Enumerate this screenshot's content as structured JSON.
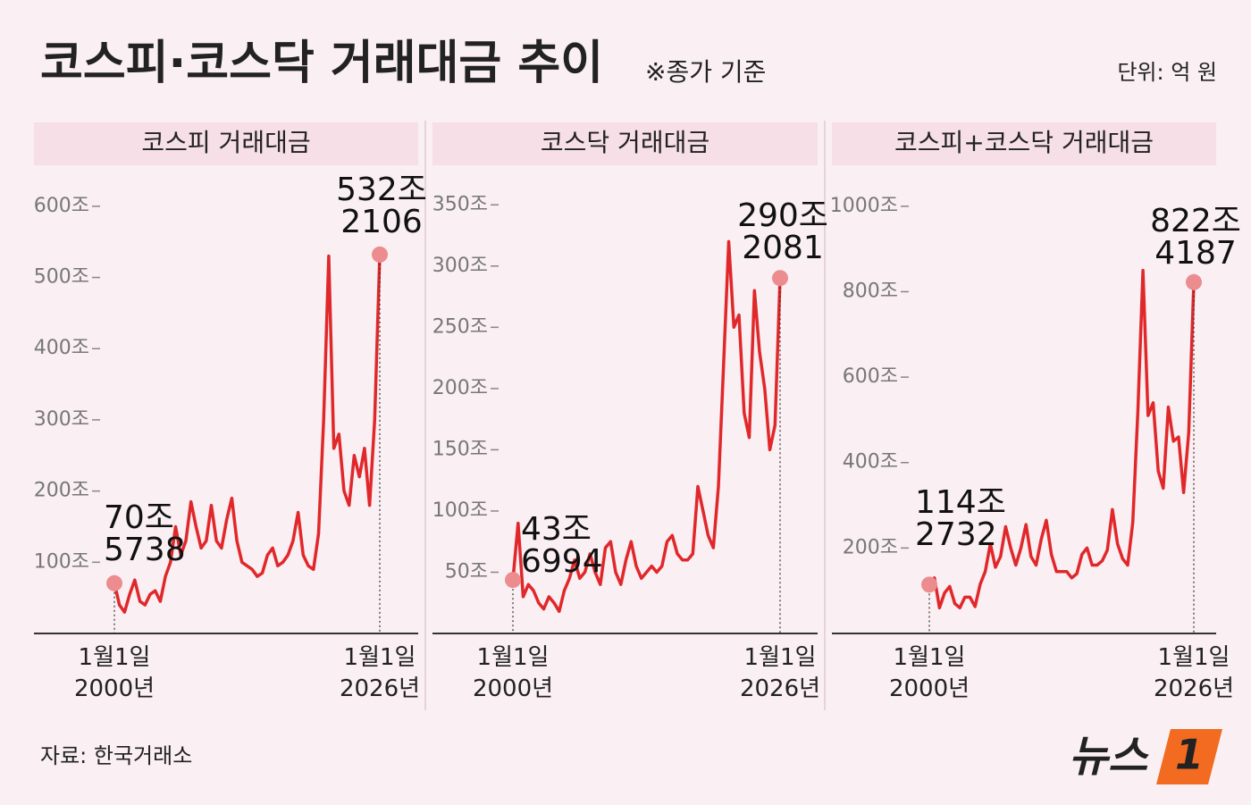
{
  "title": "코스피·코스닥 거래대금 추이",
  "note": "※종가 기준",
  "unit": "단위: 억 원",
  "source": "자료: 한국거래소",
  "logo": {
    "text": "뉴스",
    "mark": "1"
  },
  "chart_data": [
    {
      "type": "line",
      "title": "코스피 거래대금",
      "color": "#e0282b",
      "categories": [
        "1월1일\n2000년",
        null,
        null,
        null,
        null,
        null,
        null,
        null,
        null,
        null,
        null,
        null,
        null,
        null,
        null,
        null,
        null,
        null,
        null,
        null,
        null,
        null,
        null,
        null,
        null,
        null,
        null,
        null,
        null,
        null,
        null,
        null,
        null,
        null,
        null,
        null,
        null,
        null,
        null,
        null,
        null,
        null,
        null,
        null,
        null,
        null,
        null,
        null,
        null,
        null,
        null,
        null,
        "1월1일\n2026년"
      ],
      "values": [
        70.5738,
        40,
        30,
        55,
        75,
        45,
        40,
        55,
        60,
        45,
        80,
        100,
        150,
        110,
        130,
        185,
        150,
        120,
        130,
        180,
        130,
        120,
        160,
        190,
        130,
        100,
        95,
        90,
        80,
        85,
        110,
        120,
        95,
        100,
        110,
        130,
        170,
        110,
        95,
        90,
        140,
        300,
        530,
        260,
        280,
        200,
        180,
        250,
        220,
        260,
        180,
        300,
        532.2106
      ],
      "value_labels": [
        "70조\n5738",
        null,
        null,
        null,
        null,
        null,
        null,
        null,
        null,
        null,
        null,
        null,
        null,
        null,
        null,
        null,
        null,
        null,
        null,
        null,
        null,
        null,
        null,
        null,
        null,
        null,
        null,
        null,
        null,
        null,
        null,
        null,
        null,
        null,
        null,
        null,
        null,
        null,
        null,
        null,
        null,
        null,
        null,
        null,
        null,
        null,
        null,
        null,
        null,
        null,
        null,
        null,
        "532조\n2106"
      ],
      "ylim": [
        0,
        645
      ],
      "yticks": [
        {
          "value": 100,
          "label": "100조"
        },
        {
          "value": 200,
          "label": "200조"
        },
        {
          "value": 300,
          "label": "300조"
        },
        {
          "value": 400,
          "label": "400조"
        },
        {
          "value": 500,
          "label": "500조"
        },
        {
          "value": 600,
          "label": "600조"
        }
      ]
    },
    {
      "type": "line",
      "title": "코스닥 거래대금",
      "color": "#e0282b",
      "categories": [
        "1월1일\n2000년",
        null,
        null,
        null,
        null,
        null,
        null,
        null,
        null,
        null,
        null,
        null,
        null,
        null,
        null,
        null,
        null,
        null,
        null,
        null,
        null,
        null,
        null,
        null,
        null,
        null,
        null,
        null,
        null,
        null,
        null,
        null,
        null,
        null,
        null,
        null,
        null,
        null,
        null,
        null,
        null,
        null,
        null,
        null,
        null,
        null,
        null,
        null,
        null,
        null,
        null,
        null,
        "1월1일\n2026년"
      ],
      "values": [
        43.6994,
        90,
        30,
        40,
        35,
        25,
        20,
        30,
        25,
        18,
        35,
        45,
        60,
        45,
        50,
        65,
        50,
        40,
        70,
        75,
        50,
        40,
        60,
        75,
        55,
        45,
        50,
        55,
        50,
        55,
        75,
        80,
        65,
        60,
        60,
        65,
        120,
        100,
        80,
        70,
        120,
        220,
        320,
        250,
        260,
        180,
        160,
        280,
        230,
        200,
        150,
        170,
        290.2081
      ],
      "value_labels": [
        "43조\n6994",
        null,
        null,
        null,
        null,
        null,
        null,
        null,
        null,
        null,
        null,
        null,
        null,
        null,
        null,
        null,
        null,
        null,
        null,
        null,
        null,
        null,
        null,
        null,
        null,
        null,
        null,
        null,
        null,
        null,
        null,
        null,
        null,
        null,
        null,
        null,
        null,
        null,
        null,
        null,
        null,
        null,
        null,
        null,
        null,
        null,
        null,
        null,
        null,
        null,
        null,
        null,
        "290조\n2081"
      ],
      "ylim": [
        0,
        375
      ],
      "yticks": [
        {
          "value": 50,
          "label": "50조"
        },
        {
          "value": 100,
          "label": "100조"
        },
        {
          "value": 150,
          "label": "150조"
        },
        {
          "value": 200,
          "label": "200조"
        },
        {
          "value": 250,
          "label": "250조"
        },
        {
          "value": 300,
          "label": "300조"
        },
        {
          "value": 350,
          "label": "350조"
        }
      ]
    },
    {
      "type": "line",
      "title": "코스피+코스닥 거래대금",
      "color": "#e0282b",
      "categories": [
        "1월1일\n2000년",
        null,
        null,
        null,
        null,
        null,
        null,
        null,
        null,
        null,
        null,
        null,
        null,
        null,
        null,
        null,
        null,
        null,
        null,
        null,
        null,
        null,
        null,
        null,
        null,
        null,
        null,
        null,
        null,
        null,
        null,
        null,
        null,
        null,
        null,
        null,
        null,
        null,
        null,
        null,
        null,
        null,
        null,
        null,
        null,
        null,
        null,
        null,
        null,
        null,
        null,
        null,
        "1월1일\n2026년"
      ],
      "values": [
        114.2732,
        130,
        60,
        95,
        110,
        70,
        60,
        85,
        85,
        63,
        115,
        145,
        210,
        155,
        180,
        250,
        200,
        160,
        200,
        255,
        180,
        160,
        220,
        265,
        185,
        145,
        145,
        145,
        130,
        140,
        185,
        200,
        160,
        160,
        170,
        195,
        290,
        210,
        175,
        160,
        260,
        520,
        850,
        510,
        540,
        380,
        340,
        530,
        450,
        460,
        330,
        470,
        822.4187
      ],
      "value_labels": [
        "114조\n2732",
        null,
        null,
        null,
        null,
        null,
        null,
        null,
        null,
        null,
        null,
        null,
        null,
        null,
        null,
        null,
        null,
        null,
        null,
        null,
        null,
        null,
        null,
        null,
        null,
        null,
        null,
        null,
        null,
        null,
        null,
        null,
        null,
        null,
        null,
        null,
        null,
        null,
        null,
        null,
        null,
        null,
        null,
        null,
        null,
        null,
        null,
        null,
        null,
        null,
        null,
        null,
        "822조\n4187"
      ],
      "ylim": [
        0,
        1075
      ],
      "yticks": [
        {
          "value": 200,
          "label": "200조"
        },
        {
          "value": 400,
          "label": "400조"
        },
        {
          "value": 600,
          "label": "600조"
        },
        {
          "value": 800,
          "label": "800조"
        },
        {
          "value": 1000,
          "label": "1000조"
        }
      ]
    }
  ]
}
